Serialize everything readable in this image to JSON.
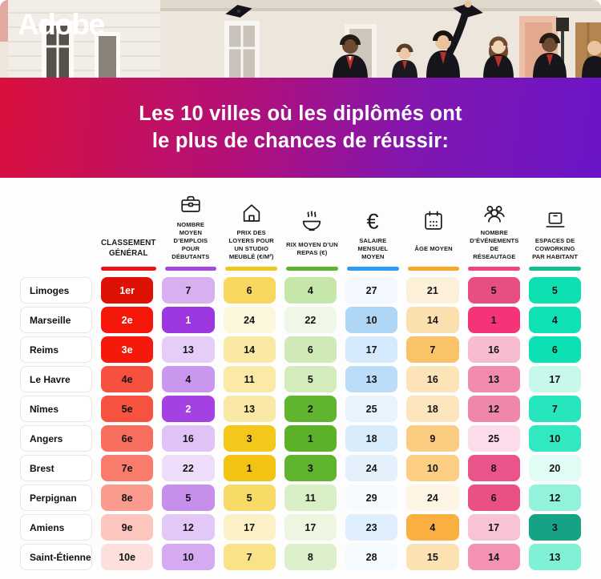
{
  "brand": {
    "logo": "Adobe"
  },
  "title": {
    "line1": "Les 10 villes où les diplômés ont",
    "line2": "le plus de chances de réussir:"
  },
  "table": {
    "columns": [
      {
        "id": "rank",
        "label": "CLASSEMENT GÉNÉRAL",
        "icon": "",
        "accent": "#ee1111"
      },
      {
        "id": "jobs",
        "label": "NOMBRE MOYEN D’EMPLOIS POUR DÉBUTANTS",
        "icon": "briefcase-icon",
        "accent": "#a347e0"
      },
      {
        "id": "rent",
        "label": "PRIX DES LOYERS POUR UN STUDIO MEUBLÉ (€/M²)",
        "icon": "house-icon",
        "accent": "#f2c51e"
      },
      {
        "id": "meal",
        "label": "RIX MOYEN D’UN REPAS (€)",
        "icon": "meal-bowl-icon",
        "accent": "#5cb32d"
      },
      {
        "id": "salary",
        "label": "SALAIRE MENSUEL MOYEN",
        "icon": "euro-icon",
        "accent": "#2d9cf4"
      },
      {
        "id": "age",
        "label": "ÂGE MOYEN",
        "icon": "calendar-icon",
        "accent": "#f9a627"
      },
      {
        "id": "events",
        "label": "NOMBRE D’ÉVÉNEMENTS DE RÉSEAUTAGE",
        "icon": "people-network-icon",
        "accent": "#f0437f"
      },
      {
        "id": "coworking",
        "label": "ESPACES DE COWORKING PAR HABITANT",
        "icon": "laptop-icon",
        "accent": "#12bd92"
      }
    ],
    "cell_colors": [
      [
        "#dd1205|w",
        "#d8b0f2",
        "#f8d75f",
        "#c6e7a9",
        "#f2f8fe",
        "#fdf0d9",
        "#e84d83",
        "#0fe0b2"
      ],
      [
        "#f5170a|w",
        "#9c36de|w",
        "#fdf7dc",
        "#eff7e6",
        "#aed7f7",
        "#fcdfae",
        "#f43379",
        "#0ee1b4"
      ],
      [
        "#f5190c|w",
        "#e5cdf8",
        "#fae9a2",
        "#cfeab7",
        "#d5eafc",
        "#fac367",
        "#f7bcd2",
        "#0ce1b3"
      ],
      [
        "#f6503f",
        "#ca97ee",
        "#fbeaa6",
        "#d3ecbc",
        "#bcddf9",
        "#fce3b8",
        "#f18bb0",
        "#c8f8ec"
      ],
      [
        "#f6523f",
        "#a540e2|w",
        "#fae9a4",
        "#60b42e",
        "#e8f4fd",
        "#fce5bd",
        "#ef86ac",
        "#27e5bc"
      ],
      [
        "#f76e5e",
        "#e0c3f6",
        "#f3c81a",
        "#5bb229",
        "#d8ecfc",
        "#fbcc7f",
        "#fcdcea",
        "#32e8c1"
      ],
      [
        "#f87b6c",
        "#eddcfa",
        "#f2c313",
        "#5eb42c",
        "#e4f1fd",
        "#fbce84",
        "#e9548a",
        "#e0fcf4"
      ],
      [
        "#fa9b8e",
        "#c68fec",
        "#f8da67",
        "#d9efc6",
        "#f6fbff",
        "#fdf4e4",
        "#e95086",
        "#93f2dc"
      ],
      [
        "#fcc5bd",
        "#e2c8f7",
        "#fcf1c6",
        "#ecf6e1",
        "#e0effd",
        "#f9b041",
        "#f8c3d7",
        "#16a385"
      ],
      [
        "#fde0db",
        "#d5aaf1",
        "#f9e287",
        "#dbf0ca",
        "#f4fafe",
        "#fce1b3",
        "#f392b4",
        "#80f0d6"
      ]
    ]
  },
  "chart_data": {
    "type": "table",
    "title": "Les 10 villes où les diplômés ont le plus de chances de réussir:",
    "columns": [
      "",
      "CLASSEMENT GÉNÉRAL",
      "NOMBRE MOYEN D’EMPLOIS POUR DÉBUTANTS",
      "PRIX DES LOYERS POUR UN STUDIO MEUBLÉ (€/M²)",
      "RIX MOYEN D’UN REPAS (€)",
      "SALAIRE MENSUEL MOYEN",
      "ÂGE MOYEN",
      "NOMBRE D’ÉVÉNEMENTS DE RÉSEAUTAGE",
      "ESPACES DE COWORKING PAR HABITANT"
    ],
    "rows": [
      [
        "Limoges",
        "1er",
        7,
        6,
        4,
        27,
        21,
        5,
        5
      ],
      [
        "Marseille",
        "2e",
        1,
        24,
        22,
        10,
        14,
        1,
        4
      ],
      [
        "Reims",
        "3e",
        13,
        14,
        6,
        17,
        7,
        16,
        6
      ],
      [
        "Le Havre",
        "4e",
        4,
        11,
        5,
        13,
        16,
        13,
        17
      ],
      [
        "Nîmes",
        "5e",
        2,
        13,
        2,
        25,
        18,
        12,
        7
      ],
      [
        "Angers",
        "6e",
        16,
        3,
        1,
        18,
        9,
        25,
        10
      ],
      [
        "Brest",
        "7e",
        22,
        1,
        3,
        24,
        10,
        8,
        20
      ],
      [
        "Perpignan",
        "8e",
        5,
        5,
        11,
        29,
        24,
        6,
        12
      ],
      [
        "Amiens",
        "9e",
        12,
        17,
        17,
        23,
        4,
        17,
        3
      ],
      [
        "Saint-Étienne",
        "10e",
        10,
        7,
        8,
        28,
        15,
        14,
        13
      ]
    ],
    "legend": "cell shading encodes rank within each column (darker = better)"
  }
}
